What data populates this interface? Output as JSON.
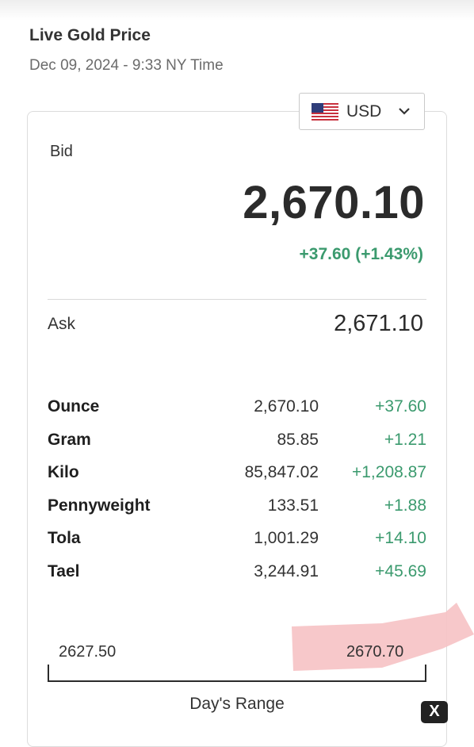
{
  "header": {
    "title": "Live Gold Price",
    "subtitle": "Dec 09, 2024 - 9:33 NY Time"
  },
  "currency": {
    "selected": "USD",
    "flag_icon": "us-flag-icon",
    "chevron_icon": "chevron-down-icon"
  },
  "bid": {
    "label": "Bid",
    "value": "2,670.10",
    "change": "+37.60 (+1.43%)"
  },
  "ask": {
    "label": "Ask",
    "value": "2,671.10"
  },
  "units": [
    {
      "name": "Ounce",
      "price": "2,670.10",
      "change": "+37.60"
    },
    {
      "name": "Gram",
      "price": "85.85",
      "change": "+1.21"
    },
    {
      "name": "Kilo",
      "price": "85,847.02",
      "change": "+1,208.87"
    },
    {
      "name": "Pennyweight",
      "price": "133.51",
      "change": "+1.88"
    },
    {
      "name": "Tola",
      "price": "1,001.29",
      "change": "+14.10"
    },
    {
      "name": "Tael",
      "price": "3,244.91",
      "change": "+45.69"
    }
  ],
  "range": {
    "low": "2627.50",
    "high": "2670.70",
    "label": "Day's Range"
  },
  "close_badge": {
    "glyph": "X",
    "icon": "close-icon"
  },
  "colors": {
    "positive": "#3b9a6e",
    "highlight": "#f6c2c4",
    "text": "#2b2b2b"
  }
}
